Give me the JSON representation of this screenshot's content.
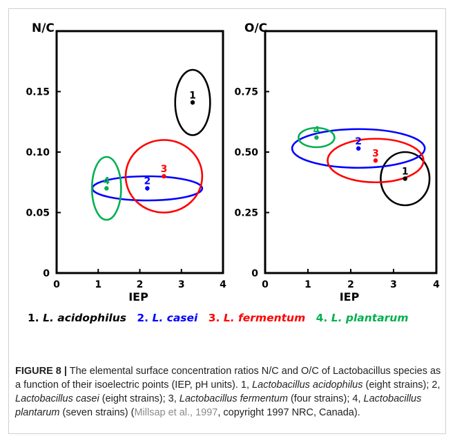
{
  "chart_data": [
    {
      "type": "scatter",
      "title": "",
      "xlabel": "IEP",
      "ylabel": "N/C",
      "xlim": [
        0,
        4
      ],
      "ylim": [
        0,
        0.2
      ],
      "xticks": [
        "0",
        "1",
        "2",
        "3",
        "4"
      ],
      "yticks": [
        "0",
        "0.05",
        "0.10",
        "0.15"
      ],
      "ytick_values": [
        0,
        0.05,
        0.1,
        0.15
      ],
      "points": [
        {
          "label": "1",
          "x": 3.27,
          "y": 0.141,
          "color": "#000000",
          "ellipse": {
            "rx": 0.42,
            "ry": 0.027
          }
        },
        {
          "label": "2",
          "x": 2.18,
          "y": 0.07,
          "color": "#0000ff",
          "ellipse": {
            "rx": 1.32,
            "ry": 0.01
          }
        },
        {
          "label": "3",
          "x": 2.58,
          "y": 0.08,
          "color": "#ff0000",
          "ellipse": {
            "rx": 0.92,
            "ry": 0.03
          }
        },
        {
          "label": "4",
          "x": 1.2,
          "y": 0.07,
          "color": "#00b050",
          "ellipse": {
            "rx": 0.35,
            "ry": 0.026
          }
        }
      ]
    },
    {
      "type": "scatter",
      "title": "",
      "xlabel": "IEP",
      "ylabel": "O/C",
      "xlim": [
        0,
        4
      ],
      "ylim": [
        0,
        1
      ],
      "xticks": [
        "0",
        "1",
        "2",
        "3",
        "4"
      ],
      "yticks": [
        "0",
        "0.25",
        "0.50",
        "0.75"
      ],
      "ytick_values": [
        0,
        0.25,
        0.5,
        0.75
      ],
      "points": [
        {
          "label": "1",
          "x": 3.27,
          "y": 0.39,
          "color": "#000000",
          "ellipse": {
            "rx": 0.57,
            "ry": 0.11
          }
        },
        {
          "label": "2",
          "x": 2.18,
          "y": 0.515,
          "color": "#0000ff",
          "ellipse": {
            "rx": 1.55,
            "ry": 0.08
          }
        },
        {
          "label": "3",
          "x": 2.58,
          "y": 0.465,
          "color": "#ff0000",
          "ellipse": {
            "rx": 1.12,
            "ry": 0.09
          }
        },
        {
          "label": "4",
          "x": 1.2,
          "y": 0.56,
          "color": "#00b050",
          "ellipse": {
            "rx": 0.42,
            "ry": 0.04
          }
        }
      ]
    }
  ],
  "legend": [
    {
      "num": "1.",
      "name": "L. acidophilus",
      "color": "#000000"
    },
    {
      "num": "2.",
      "name": "L. casei",
      "color": "#0000ff"
    },
    {
      "num": "3.",
      "name": "L. fermentum",
      "color": "#ff0000"
    },
    {
      "num": "4.",
      "name": "L. plantarum",
      "color": "#00b050"
    }
  ],
  "caption": {
    "label": "FIGURE 8 |",
    "t1": " The elemental surface concentration ratios N/C and O/C of Lactobacillus species as a function of their isoelectric points (IEP, pH units). 1, ",
    "s1": "Lactobacillus acidophilus",
    "t2": " (eight strains); 2, ",
    "s2": "Lactobacillus casei",
    "t3": " (eight strains); 3, ",
    "s3": "Lactobacillus fermentum",
    "t4": " (four strains); 4, ",
    "s4": "Lactobacillus plantarum",
    "t5": " (seven strains) (",
    "cite": "Millsap et al., 1997",
    "t6": ", copyright 1997 NRC, Canada)."
  }
}
